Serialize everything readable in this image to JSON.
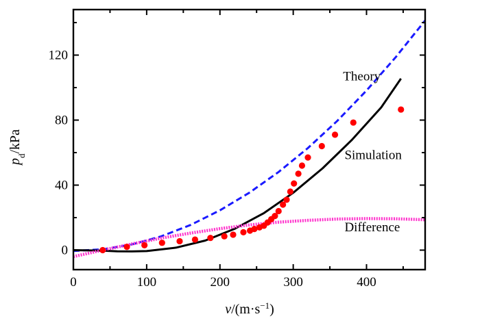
{
  "chart_data": {
    "type": "line",
    "xlabel_var": "v",
    "xlabel_unit": "/(m·s",
    "xlabel_sup": "−1",
    "xlabel_close": ")",
    "ylabel_var": "p",
    "ylabel_sub": "d",
    "ylabel_unit": "/kPa",
    "xlim": [
      0,
      480
    ],
    "ylim": [
      -12,
      148
    ],
    "x_ticks": [
      0,
      100,
      200,
      300,
      400
    ],
    "y_ticks": [
      0,
      40,
      80,
      120
    ],
    "grid": false,
    "series": [
      {
        "name": "Theory",
        "style": "dashed",
        "color": "#1a1aff",
        "x": [
          0,
          40,
          80,
          120,
          160,
          200,
          240,
          280,
          320,
          360,
          400,
          440,
          480
        ],
        "y": [
          -0.5,
          0.5,
          3.5,
          8.5,
          15.5,
          24.5,
          35.3,
          48.1,
          62.8,
          79.5,
          98.2,
          118.8,
          141.3
        ]
      },
      {
        "name": "Simulation",
        "style": "solid",
        "color": "#000000",
        "x": [
          0,
          40,
          60,
          80,
          100,
          140,
          180,
          220,
          260,
          300,
          340,
          380,
          420,
          447
        ],
        "y": [
          0,
          -0.3,
          -0.7,
          -0.8,
          -0.6,
          1.5,
          5.9,
          13.1,
          22.8,
          35.3,
          50.3,
          67.8,
          87.8,
          105.5
        ]
      },
      {
        "name": "Difference",
        "style": "dotted",
        "color": "#ff33cc",
        "x": [
          0,
          40,
          80,
          120,
          160,
          200,
          240,
          280,
          320,
          360,
          400,
          440,
          480
        ],
        "y": [
          -4,
          0,
          3.8,
          7.4,
          10.5,
          13.2,
          15.5,
          17.2,
          18.3,
          19.1,
          19.4,
          19.3,
          18.7
        ]
      },
      {
        "name": "",
        "style": "markers",
        "color": "#ff0000",
        "x": [
          40,
          73,
          97,
          121,
          145,
          166,
          187,
          206,
          218,
          232,
          241,
          247,
          254,
          260,
          265,
          270,
          275,
          280,
          286,
          291,
          296,
          301,
          307,
          312,
          320,
          339,
          357,
          382,
          447
        ],
        "y": [
          0,
          2,
          3,
          4.5,
          5.5,
          6.5,
          7.5,
          8.5,
          9.5,
          11,
          12,
          13,
          14,
          15,
          17,
          19,
          21,
          24,
          28,
          31,
          36,
          41,
          47,
          52,
          57,
          64,
          71,
          78.5,
          86.5
        ]
      }
    ],
    "annotations": [
      {
        "text": "Theory",
        "x": 368,
        "y": 104.5
      },
      {
        "text": "Simulation",
        "x": 370,
        "y": 56
      },
      {
        "text": "Difference",
        "x": 370,
        "y": 11.5
      }
    ]
  }
}
